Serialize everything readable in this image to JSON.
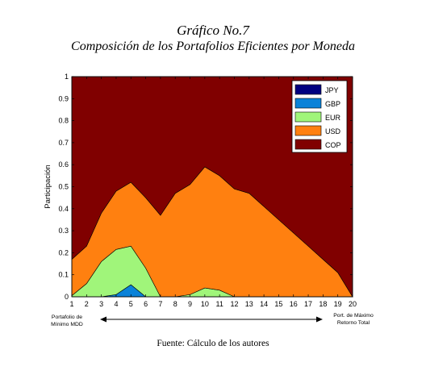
{
  "title": "Gráfico No.7",
  "subtitle": "Composición de los Portafolios Eficientes por Moneda",
  "source": "Fuente: Cálculo de los autores",
  "chart_data": {
    "type": "area",
    "stacked": true,
    "ylabel": "Participación",
    "ylim": [
      0,
      1
    ],
    "yticks": [
      0,
      0.1,
      0.2,
      0.3,
      0.4,
      0.5,
      0.6,
      0.7,
      0.8,
      0.9,
      1
    ],
    "x": [
      1,
      2,
      3,
      4,
      5,
      6,
      7,
      8,
      9,
      10,
      11,
      12,
      13,
      14,
      15,
      16,
      17,
      18,
      19,
      20
    ],
    "xlim": [
      1,
      20
    ],
    "legend_position": "top-right",
    "series": [
      {
        "name": "JPY",
        "color": "#000080",
        "values": [
          0,
          0,
          0,
          0,
          0,
          0,
          0,
          0,
          0,
          0,
          0,
          0,
          0,
          0,
          0,
          0,
          0,
          0,
          0,
          0
        ]
      },
      {
        "name": "GBP",
        "color": "#0a82d8",
        "values": [
          0,
          0,
          0,
          0.01,
          0.055,
          0,
          0,
          0,
          0,
          0,
          0,
          0,
          0,
          0,
          0,
          0,
          0,
          0,
          0,
          0
        ]
      },
      {
        "name": "EUR",
        "color": "#a0f57a",
        "values": [
          0.005,
          0.06,
          0.16,
          0.205,
          0.175,
          0.13,
          0,
          0,
          0.01,
          0.04,
          0.03,
          0,
          0,
          0,
          0,
          0,
          0,
          0,
          0,
          0
        ]
      },
      {
        "name": "USD",
        "color": "#ff8010",
        "values": [
          0.165,
          0.17,
          0.22,
          0.265,
          0.29,
          0.32,
          0.37,
          0.47,
          0.5,
          0.55,
          0.52,
          0.49,
          0.47,
          0.41,
          0.35,
          0.29,
          0.23,
          0.17,
          0.11,
          0
        ]
      },
      {
        "name": "COP",
        "color": "#800000",
        "values": [
          0.83,
          0.77,
          0.62,
          0.52,
          0.48,
          0.55,
          0.63,
          0.53,
          0.49,
          0.41,
          0.45,
          0.51,
          0.53,
          0.59,
          0.65,
          0.71,
          0.77,
          0.83,
          0.89,
          1
        ]
      }
    ],
    "annotations": {
      "left_label_line1": "Portafolio de",
      "left_label_line2": "Mínimo MDD",
      "right_label_line1": "Port. de Máximo",
      "right_label_line2": "Retorno Total"
    }
  }
}
